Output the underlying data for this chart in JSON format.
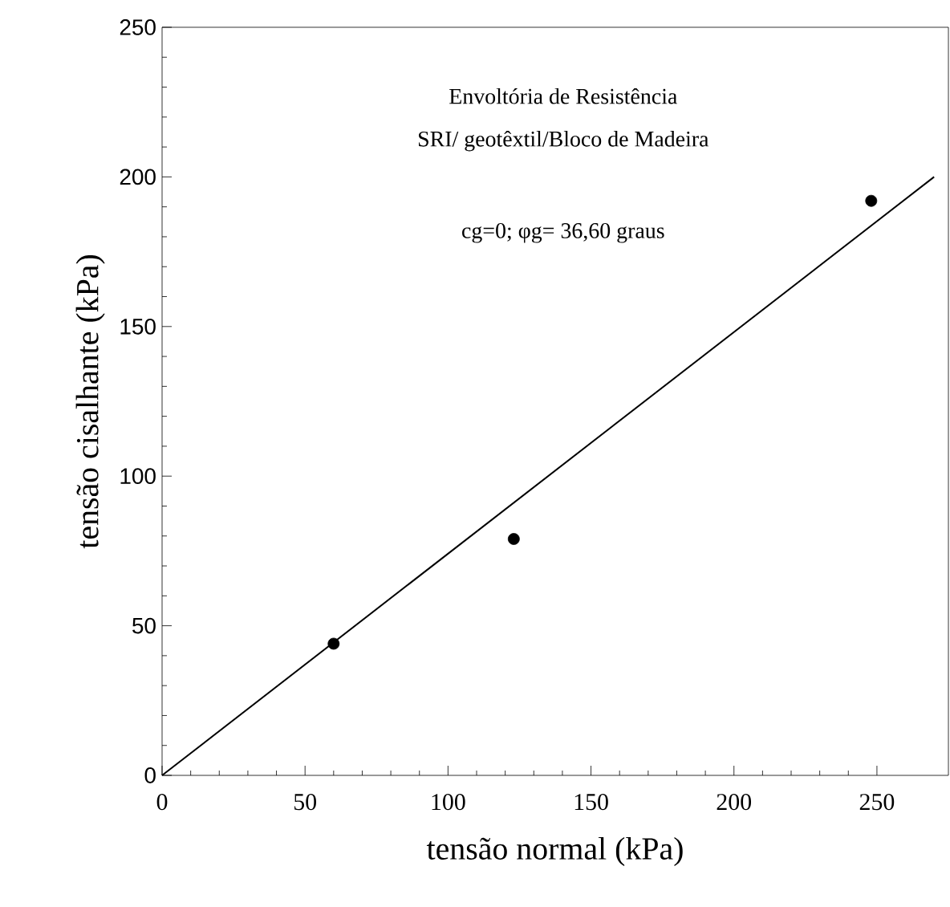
{
  "chart_data": {
    "type": "scatter",
    "xlabel": "tensão normal  (kPa)",
    "ylabel": "tensão cisalhante (kPa)",
    "annotations": [
      "Envoltória de Resistência",
      "SRI/ geotêxtil/Bloco de Madeira",
      "cg=0;  φg= 36,60 graus"
    ],
    "series": [
      {
        "color": "#000000",
        "marker": "circle",
        "x": [
          60,
          123,
          248
        ],
        "values": [
          44,
          79,
          192
        ]
      },
      {
        "type": "line",
        "color": "#000000",
        "marker": "none",
        "line_style": "solid",
        "x": [
          0,
          270
        ],
        "values": [
          0,
          200
        ]
      }
    ],
    "xlim": [
      0,
      275
    ],
    "ylim": [
      0,
      250
    ],
    "xticks": [
      0,
      50,
      100,
      150,
      200,
      250
    ],
    "yticks": [
      0,
      50,
      100,
      150,
      200,
      250
    ],
    "grid": false
  }
}
